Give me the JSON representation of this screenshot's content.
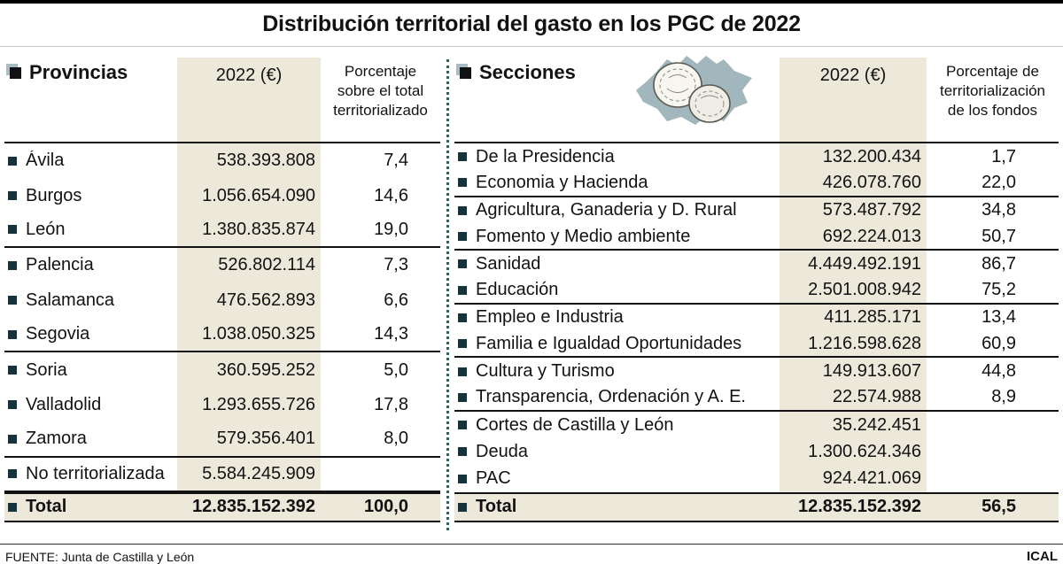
{
  "title": "Distribución territorial del gasto en los PGC de 2022",
  "colors": {
    "beige": "#ECE9DB",
    "divider": "#35605D",
    "bullet": "#14333A",
    "map": "#A2B7BD"
  },
  "provinces": {
    "header": "Provincias",
    "col_year": "2022 (€)",
    "col_pct": "Porcentaje\nsobre el total\nterritorializado",
    "rows": [
      {
        "label": "Ávila",
        "value": "538.393.808",
        "pct": "7,4"
      },
      {
        "label": "Burgos",
        "value": "1.056.654.090",
        "pct": "14,6"
      },
      {
        "label": "León",
        "value": "1.380.835.874",
        "pct": "19,0",
        "rule_after": true
      },
      {
        "label": "Palencia",
        "value": "526.802.114",
        "pct": "7,3"
      },
      {
        "label": "Salamanca",
        "value": "476.562.893",
        "pct": "6,6"
      },
      {
        "label": "Segovia",
        "value": "1.038.050.325",
        "pct": "14,3",
        "rule_after": true
      },
      {
        "label": "Soria",
        "value": "360.595.252",
        "pct": "5,0"
      },
      {
        "label": "Valladolid",
        "value": "1.293.655.726",
        "pct": "17,8"
      },
      {
        "label": "Zamora",
        "value": "579.356.401",
        "pct": "8,0",
        "rule_after": true
      },
      {
        "label": "No territorializada",
        "value": "5.584.245.909",
        "pct": "",
        "rule_after": true
      }
    ],
    "total": {
      "label": "Total",
      "value": "12.835.152.392",
      "pct": "100,0"
    }
  },
  "sections": {
    "header": "Secciones",
    "col_year": "2022 (€)",
    "col_pct": "Porcentaje de\nterritorialización\nde los fondos",
    "rows": [
      {
        "label": "De la Presidencia",
        "value": "132.200.434",
        "pct": "1,7"
      },
      {
        "label": "Economia y Hacienda",
        "value": "426.078.760",
        "pct": "22,0",
        "rule_after": true
      },
      {
        "label": "Agricultura, Ganaderia y D. Rural",
        "value": "573.487.792",
        "pct": "34,8"
      },
      {
        "label": "Fomento y Medio ambiente",
        "value": "692.224.013",
        "pct": "50,7",
        "rule_after": true
      },
      {
        "label": "Sanidad",
        "value": "4.449.492.191",
        "pct": "86,7"
      },
      {
        "label": "Educación",
        "value": "2.501.008.942",
        "pct": "75,2",
        "rule_after": true
      },
      {
        "label": "Empleo e Industria",
        "value": "411.285.171",
        "pct": "13,4"
      },
      {
        "label": "Familia e Igualdad Oportunidades",
        "value": "1.216.598.628",
        "pct": "60,9",
        "rule_after": true
      },
      {
        "label": "Cultura y Turismo",
        "value": "149.913.607",
        "pct": "44,8"
      },
      {
        "label": "Transparencia, Ordenación y A. E.",
        "value": "22.574.988",
        "pct": "8,9",
        "rule_after": true
      },
      {
        "label": "Cortes de Castilla y León",
        "value": "35.242.451",
        "pct": ""
      },
      {
        "label": "Deuda",
        "value": "1.300.624.346",
        "pct": ""
      },
      {
        "label": "PAC",
        "value": "924.421.069",
        "pct": ""
      }
    ],
    "total": {
      "label": "Total",
      "value": "12.835.152.392",
      "pct": "56,5"
    }
  },
  "footer": {
    "source": "FUENTE: Junta de Castilla y León",
    "credit": "ICAL"
  },
  "chart_data": [
    {
      "type": "table",
      "title": "Provincias",
      "columns": [
        "Provincia",
        "2022 (€)",
        "Porcentaje sobre el total territorializado"
      ],
      "rows": [
        [
          "Ávila",
          538393808,
          7.4
        ],
        [
          "Burgos",
          1056654090,
          14.6
        ],
        [
          "León",
          1380835874,
          19.0
        ],
        [
          "Palencia",
          526802114,
          7.3
        ],
        [
          "Salamanca",
          476562893,
          6.6
        ],
        [
          "Segovia",
          1038050325,
          14.3
        ],
        [
          "Soria",
          360595252,
          5.0
        ],
        [
          "Valladolid",
          1293655726,
          17.8
        ],
        [
          "Zamora",
          579356401,
          8.0
        ],
        [
          "No territorializada",
          5584245909,
          null
        ]
      ],
      "total": [
        "Total",
        12835152392,
        100.0
      ]
    },
    {
      "type": "table",
      "title": "Secciones",
      "columns": [
        "Sección",
        "2022 (€)",
        "Porcentaje de territorialización de los fondos"
      ],
      "rows": [
        [
          "De la Presidencia",
          132200434,
          1.7
        ],
        [
          "Economia y Hacienda",
          426078760,
          22.0
        ],
        [
          "Agricultura, Ganaderia y D. Rural",
          573487792,
          34.8
        ],
        [
          "Fomento y Medio ambiente",
          692224013,
          50.7
        ],
        [
          "Sanidad",
          4449492191,
          86.7
        ],
        [
          "Educación",
          2501008942,
          75.2
        ],
        [
          "Empleo e Industria",
          411285171,
          13.4
        ],
        [
          "Familia e Igualdad Oportunidades",
          1216598628,
          60.9
        ],
        [
          "Cultura y Turismo",
          149913607,
          44.8
        ],
        [
          "Transparencia, Ordenación y A. E.",
          22574988,
          8.9
        ],
        [
          "Cortes de Castilla y León",
          35242451,
          null
        ],
        [
          "Deuda",
          1300624346,
          null
        ],
        [
          "PAC",
          924421069,
          null
        ]
      ],
      "total": [
        "Total",
        12835152392,
        56.5
      ]
    }
  ]
}
